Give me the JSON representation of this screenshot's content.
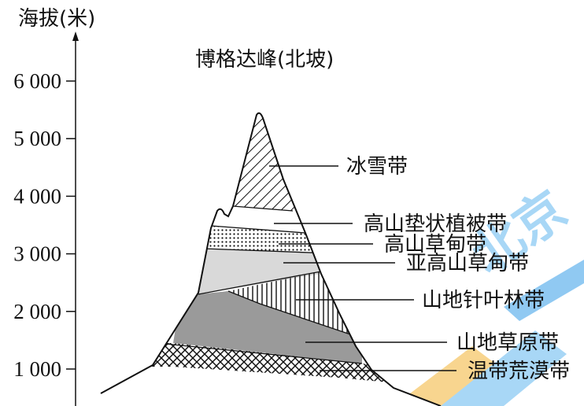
{
  "axis": {
    "label": "海拔(米)",
    "ticks": [
      {
        "value": 1000,
        "label": "1 000"
      },
      {
        "value": 2000,
        "label": "2 000"
      },
      {
        "value": 3000,
        "label": "3 000"
      },
      {
        "value": 4000,
        "label": "4 000"
      },
      {
        "value": 5000,
        "label": "5 000"
      },
      {
        "value": 6000,
        "label": "6 000"
      }
    ]
  },
  "title": "博格达峰(北坡)",
  "zones": [
    {
      "id": "snow",
      "label": "冰雪带",
      "pattern": "diagonal-hatch"
    },
    {
      "id": "cushion",
      "label": "高山垫状植被带",
      "pattern": "white"
    },
    {
      "id": "alpine-meadow",
      "label": "高山草甸带",
      "pattern": "dots"
    },
    {
      "id": "subalpine-meadow",
      "label": "亚高山草甸带",
      "pattern": "light-gray"
    },
    {
      "id": "conifer",
      "label": "山地针叶林带",
      "pattern": "vertical-lines"
    },
    {
      "id": "mountain-steppe",
      "label": "山地草原带",
      "pattern": "dark-gray"
    },
    {
      "id": "desert",
      "label": "温带荒漠带",
      "pattern": "crosshatch"
    }
  ],
  "colors": {
    "ink": "#111111",
    "light_gray": "#d9d9d9",
    "dark_gray": "#9a9a9a",
    "watermark": "#4aa3e8"
  }
}
